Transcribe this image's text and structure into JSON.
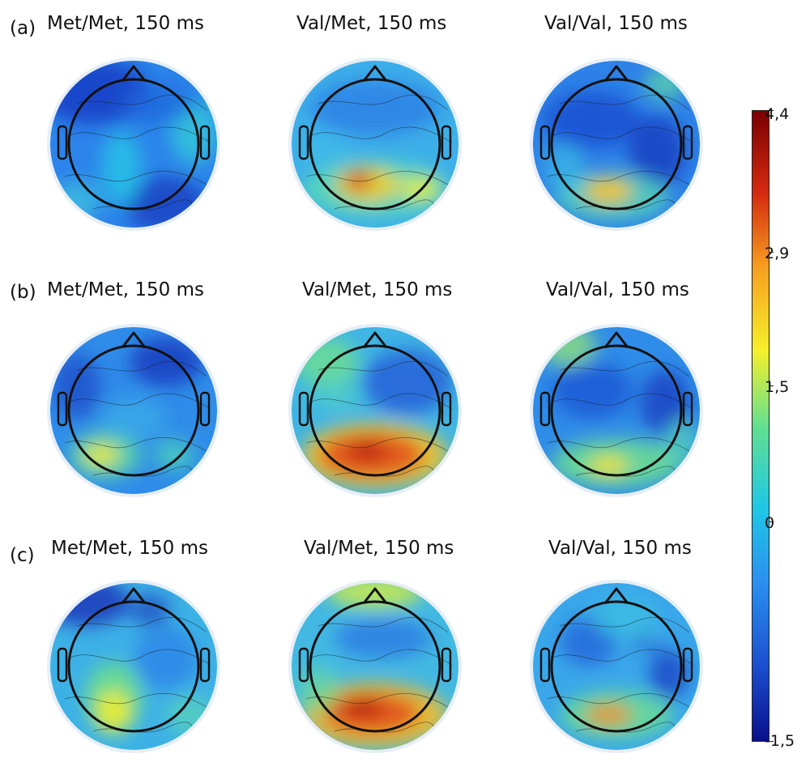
{
  "rows": [
    {
      "label": "(a)",
      "panels": [
        {
          "title": "Met/Met, 150 ms",
          "pattern": "met_a"
        },
        {
          "title": "Val/Met, 150 ms",
          "pattern": "valmet_a"
        },
        {
          "title": "Val/Val, 150 ms",
          "pattern": "valval_a"
        }
      ]
    },
    {
      "label": "(b)",
      "panels": [
        {
          "title": "Met/Met, 150 ms",
          "pattern": "met_b"
        },
        {
          "title": "Val/Met, 150 ms",
          "pattern": "valmet_b"
        },
        {
          "title": "Val/Val, 150 ms",
          "pattern": "valval_b"
        }
      ]
    },
    {
      "label": "(c)",
      "panels": [
        {
          "title": "Met/Met, 150 ms",
          "pattern": "met_c"
        },
        {
          "title": "Val/Met, 150 ms",
          "pattern": "valmet_c"
        },
        {
          "title": "Val/Val, 150 ms",
          "pattern": "valval_c"
        }
      ]
    }
  ],
  "colorbar": {
    "ticks": [
      "4,4",
      "2,9",
      "1,5",
      "0",
      "-1,5"
    ],
    "colors": [
      "#7a0000",
      "#d42a10",
      "#f7a020",
      "#f6f02a",
      "#63e08f",
      "#1fc7e6",
      "#2b8ff0",
      "#1b4fcf",
      "#08108c"
    ]
  }
}
